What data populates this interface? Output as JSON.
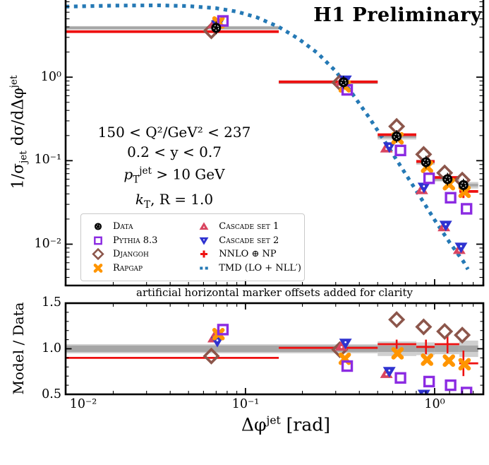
{
  "header": {
    "title": "H1 Preliminary"
  },
  "annotation": "artificial horizontal marker offsets added for clarity",
  "cuts": {
    "line1": "150 < Q²/GeV² < 237",
    "line2": "0.2 < y < 0.7",
    "line3": {
      "base": "p",
      "sub": "T",
      "sup": "jet",
      "rest": " > 10 GeV"
    },
    "line4": {
      "base": "k",
      "sub": "T",
      "rest": ", R = 1.0"
    }
  },
  "axes": {
    "x_ticks": [
      "10⁻²",
      "10⁻¹",
      "10⁰"
    ],
    "y_ticks_main": [
      "10⁰",
      "10⁻¹",
      "10⁻²"
    ],
    "y_ticks_ratio": [
      "1.5",
      "1.0",
      "0.5"
    ],
    "xlabel": {
      "base": "Δφ",
      "sup": "jet",
      "unit": " [rad]"
    },
    "ylabel_main": {
      "a": "1/σ",
      "a_sub": "jet",
      "b": " dσ/dΔφ",
      "b_sup": "jet"
    },
    "ylabel_ratio": "Model / Data"
  },
  "legend": {
    "items": [
      {
        "key": "data",
        "label": "Data"
      },
      {
        "key": "pythia",
        "label": "Pythia 8.3"
      },
      {
        "key": "djangoh",
        "label": "Djangoh"
      },
      {
        "key": "rapgap",
        "label": "Rapgap"
      },
      {
        "key": "cascade1",
        "label": "Cascade set 1"
      },
      {
        "key": "cascade2",
        "label": "Cascade set 2"
      },
      {
        "key": "nnlo",
        "label": "NNLO ⊕ NP"
      },
      {
        "key": "tmd",
        "label": "TMD (LO + NLL′)"
      }
    ]
  },
  "chart_data": {
    "type": "scatter",
    "title": "H1 Preliminary",
    "xlabel": "Δφ^jet [rad]",
    "ylabel": "1/σ_jet dσ/dΔφ^jet",
    "ylabel_ratio": "Model / Data",
    "x_scale": "log",
    "y_scale_main": "log",
    "xlim": [
      0.0112,
      1.81
    ],
    "ylim_main": [
      0.0032,
      8.4
    ],
    "ylim_ratio": [
      0.5,
      1.5
    ],
    "x_major_ticks": [
      0.1,
      1.0
    ],
    "x_extra_minor": [
      1.2,
      1.4,
      1.6,
      1.8
    ],
    "y_major_ticks_main": [
      1.0,
      0.1,
      0.01
    ],
    "ratio_major_ticks": [
      0.5,
      1.0,
      1.5
    ],
    "ratio_minor_ticks": [
      0.6,
      0.7,
      0.8,
      0.9,
      1.1,
      1.2,
      1.3,
      1.4
    ],
    "bins": [
      [
        0.0112,
        0.15
      ],
      [
        0.15,
        0.5
      ],
      [
        0.5,
        0.8
      ],
      [
        0.8,
        1.0
      ],
      [
        1.0,
        1.35
      ],
      [
        1.35,
        1.7
      ]
    ],
    "data": {
      "x": [
        0.07,
        0.33,
        0.63,
        0.9,
        1.17,
        1.42
      ],
      "y": [
        3.9,
        0.87,
        0.195,
        0.096,
        0.06,
        0.051
      ],
      "band_outer": [
        0.05,
        0.05,
        0.08,
        0.07,
        0.06,
        0.09
      ],
      "band_inner": 0.035
    },
    "series": {
      "pythia": {
        "x": [
          0.076,
          0.345,
          0.66,
          0.935,
          1.215,
          1.475
        ],
        "ratio": [
          1.21,
          0.81,
          0.68,
          0.64,
          0.6,
          0.52
        ]
      },
      "djangoh": {
        "x": [
          0.066,
          0.315,
          0.63,
          0.875,
          1.13,
          1.4
        ],
        "ratio": [
          0.92,
          0.99,
          1.32,
          1.24,
          1.19,
          1.15
        ]
      },
      "rapgap": {
        "x": [
          0.072,
          0.335,
          0.637,
          0.912,
          1.19,
          1.44
        ],
        "ratio": [
          1.16,
          0.89,
          0.95,
          0.88,
          0.87,
          0.83
        ]
      },
      "cascade1": {
        "x": [
          0.068,
          0.322,
          0.556,
          0.855,
          1.12,
          1.35
        ],
        "ratio": [
          1.12,
          1.03,
          0.73,
          0.47,
          0.27,
          0.17
        ]
      },
      "cascade2": {
        "x": [
          0.071,
          0.338,
          0.576,
          0.878,
          1.145,
          1.38
        ],
        "ratio": [
          1.08,
          1.06,
          0.75,
          0.5,
          0.28,
          0.18
        ]
      },
      "nnlo": {
        "x": [
          0.07,
          0.33,
          0.63,
          0.9,
          1.17,
          1.42
        ],
        "ratio": [
          0.9,
          1.01,
          1.05,
          1.02,
          1.05,
          0.84
        ],
        "err": [
          0.015,
          0.02,
          0.05,
          0.08,
          0.1,
          0.14
        ]
      },
      "tmd": {
        "curve_x": [
          0.0112,
          0.02,
          0.035,
          0.05,
          0.07,
          0.09,
          0.115,
          0.15,
          0.19,
          0.24,
          0.3,
          0.37,
          0.45,
          0.55,
          0.67,
          0.82,
          1.0,
          1.2,
          1.42,
          1.5
        ],
        "curve_y": [
          7.0,
          7.2,
          7.25,
          7.1,
          6.7,
          6.1,
          5.2,
          4.0,
          2.9,
          1.95,
          1.18,
          0.62,
          0.33,
          0.165,
          0.082,
          0.04,
          0.0195,
          0.0105,
          0.0062,
          0.005
        ]
      }
    },
    "colors": {
      "data": "#000000",
      "pythia": "#8b2be2",
      "djangoh": "#8c564b",
      "rapgap": "#ff9500",
      "cascade1": "#d94560",
      "cascade2": "#2f33d0",
      "nnlo": "#ee1111",
      "tmd": "#2579b5",
      "band_outer": "#cfcfcf",
      "band_inner": "#a6a6a6",
      "refline": "#8f8f8f"
    }
  }
}
